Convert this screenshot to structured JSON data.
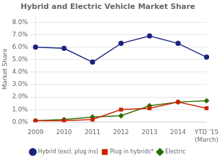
{
  "chart_data": {
    "type": "line",
    "title": "Hybrid and Electric Vehicle Market Share",
    "ylabel": "Market Share",
    "categories": [
      "2009",
      "2010",
      "2011",
      "2012",
      "2013",
      "2014",
      "YTD ’15\n(March)"
    ],
    "series": [
      {
        "name": "Hybrid (excl. plug ins)",
        "color": "#1a237e",
        "marker": "circle",
        "values": [
          0.06,
          0.059,
          0.048,
          0.063,
          0.069,
          0.063,
          0.052
        ]
      },
      {
        "name": "Plug in hybrids*",
        "color": "#cc2200",
        "marker": "square",
        "values": [
          0.001,
          0.001,
          0.002,
          0.01,
          0.011,
          0.016,
          0.011
        ]
      },
      {
        "name": "Electric",
        "color": "#2e6b00",
        "marker": "diamond",
        "values": [
          0.001,
          0.002,
          0.004,
          0.005,
          0.013,
          0.016,
          0.017
        ]
      }
    ],
    "ylim": [
      0.0,
      0.085
    ],
    "yticks": [
      {
        "value": 0.0,
        "label": "0.0%"
      },
      {
        "value": 0.01,
        "label": "1.0%"
      },
      {
        "value": 0.02,
        "label": "2.0%"
      },
      {
        "value": 0.03,
        "label": "3.0%"
      },
      {
        "value": 0.04,
        "label": "4.0%"
      },
      {
        "value": 0.05,
        "label": "5.0%"
      },
      {
        "value": 0.06,
        "label": "6.0%"
      },
      {
        "value": 0.07,
        "label": "7.0%"
      },
      {
        "value": 0.08,
        "label": "8.0%"
      }
    ],
    "grid": true,
    "legend": "bottom"
  }
}
